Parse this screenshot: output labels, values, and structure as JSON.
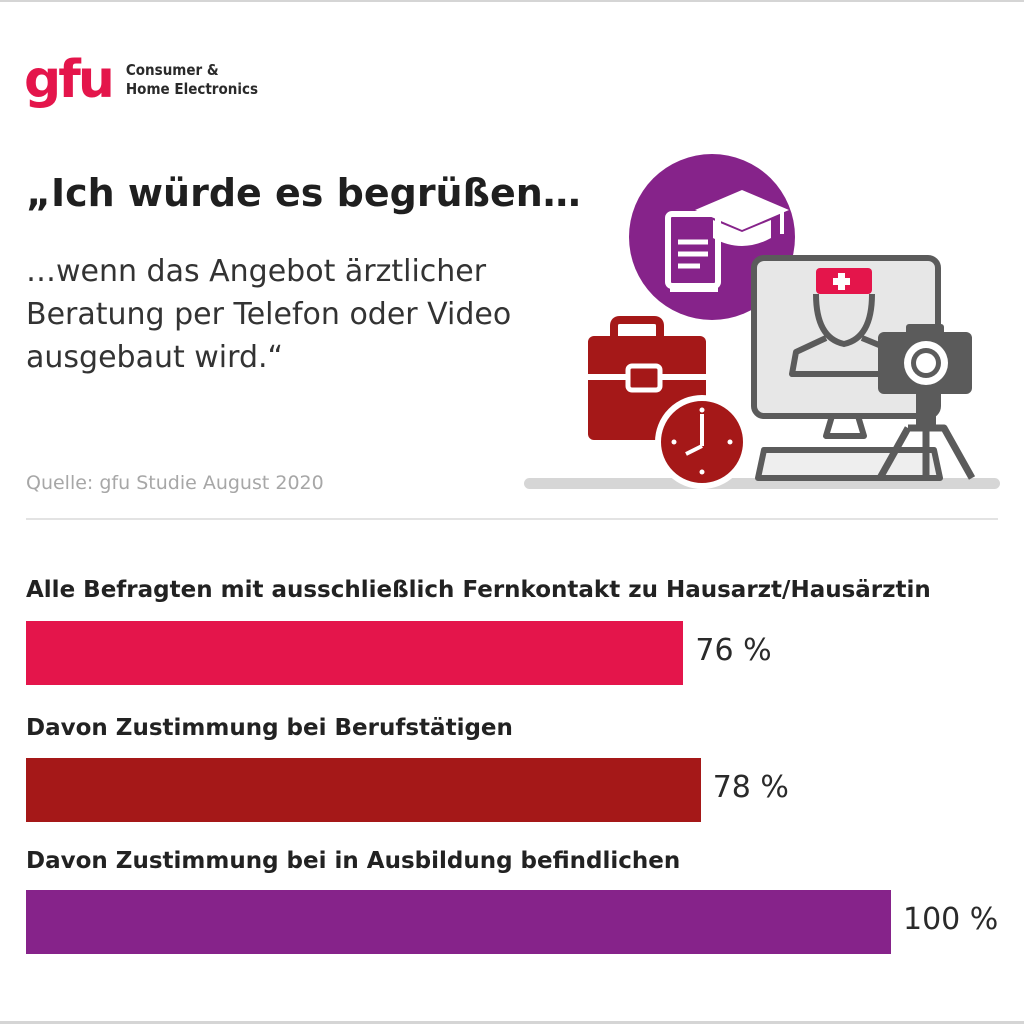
{
  "brand": {
    "logo_text": "gfu",
    "tagline_line1": "Consumer &",
    "tagline_line2": "Home Electronics",
    "logo_color": "#e4154b"
  },
  "headline": "„Ich würde es begrüßen…",
  "subline": "…wenn das Angebot ärztlicher Beratung per Telefon oder Video ausgebaut wird.“",
  "source": "Quelle: gfu Studie August 2020",
  "illustration": {
    "icons": [
      "graduation-book-icon",
      "briefcase-icon",
      "clock-icon",
      "video-doctor-monitor-icon",
      "camera-tripod-icon"
    ],
    "colors": {
      "purple": "#86238a",
      "darkred": "#a51818",
      "red": "#e4154b",
      "gray": "#5a5a5a",
      "lightgray": "#e6e6e6"
    }
  },
  "chart_data": {
    "type": "bar",
    "orientation": "horizontal",
    "unit": "%",
    "xlim": [
      0,
      100
    ],
    "grid": false,
    "categories": [
      "Alle Befragten mit ausschließlich Fernkontakt zu Hausarzt/Hausärztin",
      "Davon Zustimmung bei Berufstätigen",
      "Davon Zustimmung bei in Ausbildung befindlichen"
    ],
    "values": [
      76,
      78,
      100
    ],
    "value_labels": [
      "76 %",
      "78 %",
      "100 %"
    ],
    "colors": [
      "#e4154b",
      "#a51818",
      "#86238a"
    ]
  }
}
